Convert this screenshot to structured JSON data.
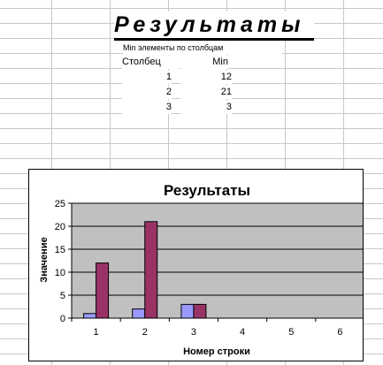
{
  "sheet": {
    "title": "Результаты",
    "subtitle": "Min элементы по столбцам",
    "table": {
      "headers": [
        "Столбец",
        "Min"
      ],
      "rows": [
        {
          "col": "1",
          "min": "12"
        },
        {
          "col": "2",
          "min": "21"
        },
        {
          "col": "3",
          "min": "3"
        }
      ]
    }
  },
  "chart_data": {
    "type": "bar",
    "title": "Результаты",
    "xlabel": "Номер строки",
    "ylabel": "Значение",
    "categories": [
      "1",
      "2",
      "3",
      "4",
      "5",
      "6"
    ],
    "series": [
      {
        "values": [
          1,
          2,
          3,
          null,
          null,
          null
        ],
        "color": "#9999ff"
      },
      {
        "values": [
          12,
          21,
          3,
          null,
          null,
          null
        ],
        "color": "#993366"
      }
    ],
    "ylim": [
      0,
      25
    ],
    "yticks": [
      "0",
      "5",
      "10",
      "15",
      "20",
      "25"
    ],
    "grid": true,
    "plot_background": "#c0c0c0"
  }
}
